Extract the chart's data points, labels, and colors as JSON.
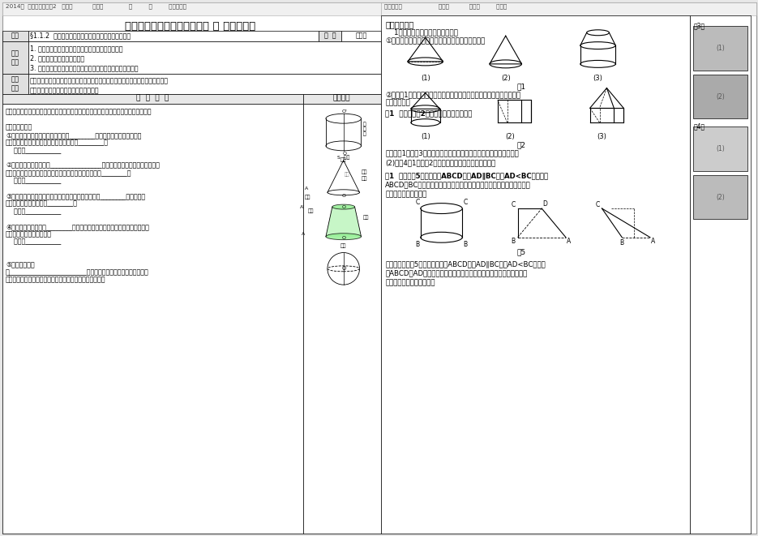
{
  "bg_color": "#e8e8e8",
  "page_bg": "#ffffff",
  "header_text_left": "2014级  人教版数学必修2   编号：           日期：              月         日         编制老师：",
  "header_text_right": "审核老师：                    班级：           小组：         姓名：",
  "title": "人教版数学学科必修二模块第 一 章节教学案",
  "course_topic": "§1.1.2  圆柱、锥、台、球以及简单组合体的结构特征",
  "course_type": "新授课",
  "study_goals": [
    "1. 会用语言描述圆柱、圆锥、圆台、球的结构特征。",
    "2. 认识简单组合体的结构特征",
    "3. 能根据对简单组合体的结构特征的描述，说出几何体的名称"
  ],
  "key_content": [
    "教学重点：让学生感受大量空间实物及模型，概括出柱、锥、台、球的结构特征。",
    "教学难点：描述简单组合体的结构特征。"
  ],
  "left_lines": [
    "一、预习目标：理解直柱、圆锥、圆台、球的结构特征，认识简单组合体的结构特征。",
    "",
    "二、预习内容：",
    "①圆柱：以矩形的一边所在的直线为________，其余三边旋转，形成的面",
    "所围成的旋转体叫做圆柱，圆柱和棱柱统称________。",
    "    记作：___________",
    "",
    "②圆锥：以直角三角形的________________所在的直线为旋转轴，其余两边旋",
    "转，形成的面所围成的旋转体叫做圆锥，圆锥和棱锥统称________。",
    "    记作：___________",
    "",
    "③圆台：用平行于圆锥处底面的平面去截圆锥，底面与________之间的部分",
    "叫圆台，圆台和棱台统称________。",
    "    记作：___________",
    "",
    "④球的定义：以半圆的________所在的直线为旋转轴，半圆面旋转一周，形成",
    "的旋转体叫球体，简称球。",
    "    记作：___________",
    "",
    "",
    "⑤简单组合体：",
    "由________________________组合而成的几何体叫做简单组合体。",
    "常见的组合体大多由具有柱锥台球等几何体特征的图题组成"
  ],
  "right_lines": [
    "二、学习过程",
    "    1、通过思考、交流回答下列问题",
    "①请指出下列几何体是由哪些简单几何体组合而成的",
    "②观察图1，结合生活实际联系起来，说出简单组合体有几种组合形式？",
    "举典型例题。",
    "例1  请描述如图2所示的组合体的结构特征",
    "练习：（1）如图3说出下列物体可以近似地看作是那几种几何体组成？",
    "(2)如图4（1）、（2）所示的两个组合体有什么区别？",
    "例1  三如如图5所示，梯形ABCD中，AD∥BC，且AD<BC，当梯形",
    "ABCD绕BC所在直线旋转一周时，其他各边旋转置成的一个几何体，试描",
    "述该几何体的结构特征",
    "变式训练：如图5所示，三如梯形ABCD中，AD∥BC，且AD<BC，当梯",
    "形ABCD将AD所在直线旋转一周时，其他各边旋转置成的一个几何体，",
    "试描述该几何体的结构特征"
  ]
}
